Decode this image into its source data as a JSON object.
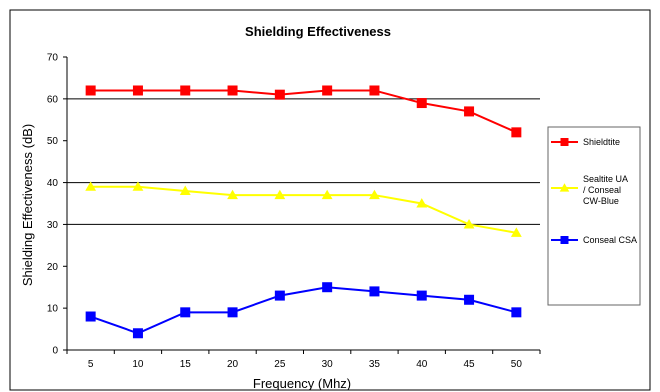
{
  "chart_data": {
    "type": "line",
    "title": "Shielding Effectiveness",
    "xlabel": "Frequency (Mhz)",
    "ylabel": "Shielding Effectiveness (dB)",
    "x": [
      5,
      10,
      15,
      20,
      25,
      30,
      35,
      40,
      45,
      50
    ],
    "ylim": [
      0,
      70
    ],
    "yticks": [
      0,
      10,
      20,
      30,
      40,
      50,
      60,
      70
    ],
    "grid": "horizontal major lines at 30, 40, 60",
    "legend": "right",
    "series": [
      {
        "name": "Shieldtite",
        "color": "#ff0000",
        "marker": "square",
        "values": [
          62,
          62,
          62,
          62,
          61,
          62,
          62,
          59,
          57,
          52
        ]
      },
      {
        "name": "Sealtite UA / Conseal CW-Blue",
        "color": "#ffff00",
        "marker": "triangle",
        "values": [
          39,
          39,
          38,
          37,
          37,
          37,
          37,
          35,
          30,
          28
        ]
      },
      {
        "name": "Conseal CSA",
        "color": "#0000ff",
        "marker": "square",
        "values": [
          8,
          4,
          9,
          9,
          13,
          15,
          14,
          13,
          12,
          9
        ]
      }
    ]
  }
}
